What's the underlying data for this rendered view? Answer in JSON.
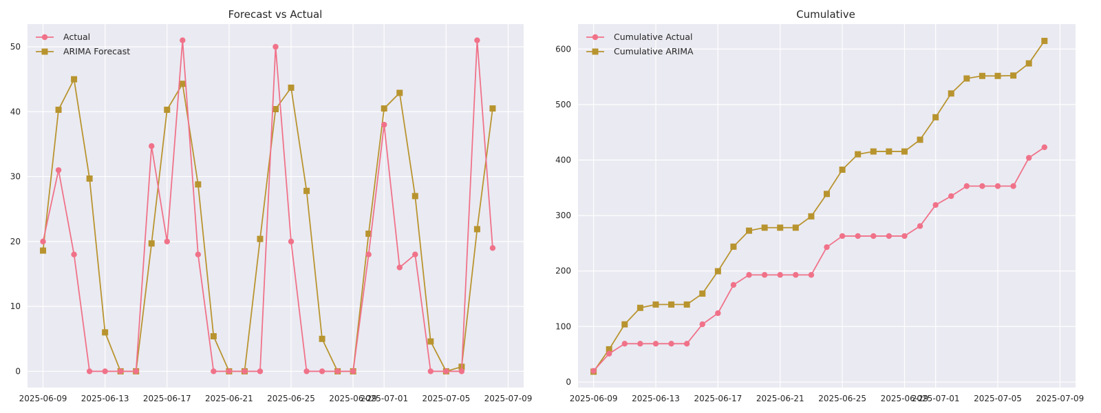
{
  "colors": {
    "actual": "#f07289",
    "forecast": "#b8942f",
    "background": "#eaeaf2",
    "grid": "#ffffff"
  },
  "chart_data": [
    {
      "type": "line",
      "title": "Forecast vs Actual",
      "xlabel": "",
      "ylabel": "",
      "x": [
        "2025-06-09",
        "2025-06-10",
        "2025-06-11",
        "2025-06-12",
        "2025-06-13",
        "2025-06-14",
        "2025-06-15",
        "2025-06-16",
        "2025-06-17",
        "2025-06-18",
        "2025-06-19",
        "2025-06-20",
        "2025-06-21",
        "2025-06-22",
        "2025-06-23",
        "2025-06-24",
        "2025-06-25",
        "2025-06-26",
        "2025-06-27",
        "2025-06-28",
        "2025-06-29",
        "2025-06-30",
        "2025-07-01",
        "2025-07-02",
        "2025-07-03",
        "2025-07-04",
        "2025-07-05",
        "2025-07-06",
        "2025-07-07",
        "2025-07-08"
      ],
      "xlim": [
        "2025-06-08",
        "2025-07-10"
      ],
      "x_ticks": [
        "2025-06-09",
        "2025-06-13",
        "2025-06-17",
        "2025-06-21",
        "2025-06-25",
        "2025-06-29",
        "2025-07-01",
        "2025-07-05",
        "2025-07-09"
      ],
      "ylim": [
        -2.5,
        53.5
      ],
      "y_ticks": [
        0,
        10,
        20,
        30,
        40,
        50
      ],
      "grid": true,
      "legend": "top-left",
      "series": [
        {
          "name": "Actual",
          "marker": "circle",
          "color": "#f07289",
          "values": [
            20,
            31,
            18,
            0,
            0,
            0,
            0,
            34.7,
            20,
            51,
            18,
            0,
            0,
            0,
            0,
            50,
            20,
            0,
            0,
            0,
            0,
            18,
            38,
            16,
            18,
            0,
            0,
            0,
            51,
            19
          ]
        },
        {
          "name": "ARIMA Forecast",
          "marker": "square",
          "color": "#b8942f",
          "values": [
            18.6,
            40.3,
            45,
            29.7,
            6,
            0,
            0,
            19.7,
            40.3,
            44.3,
            28.8,
            5.4,
            0,
            0,
            20.4,
            40.4,
            43.7,
            27.8,
            5,
            0,
            0,
            21.2,
            40.5,
            42.9,
            27,
            4.6,
            0,
            0.7,
            21.9,
            40.5
          ]
        }
      ]
    },
    {
      "type": "line",
      "title": "Cumulative",
      "xlabel": "",
      "ylabel": "",
      "x": [
        "2025-06-09",
        "2025-06-10",
        "2025-06-11",
        "2025-06-12",
        "2025-06-13",
        "2025-06-14",
        "2025-06-15",
        "2025-06-16",
        "2025-06-17",
        "2025-06-18",
        "2025-06-19",
        "2025-06-20",
        "2025-06-21",
        "2025-06-22",
        "2025-06-23",
        "2025-06-24",
        "2025-06-25",
        "2025-06-26",
        "2025-06-27",
        "2025-06-28",
        "2025-06-29",
        "2025-06-30",
        "2025-07-01",
        "2025-07-02",
        "2025-07-03",
        "2025-07-04",
        "2025-07-05",
        "2025-07-06",
        "2025-07-07",
        "2025-07-08"
      ],
      "xlim": [
        "2025-06-08",
        "2025-07-10"
      ],
      "x_ticks": [
        "2025-06-09",
        "2025-06-13",
        "2025-06-17",
        "2025-06-21",
        "2025-06-25",
        "2025-06-29",
        "2025-07-01",
        "2025-07-05",
        "2025-07-09"
      ],
      "ylim": [
        -10,
        645
      ],
      "y_ticks": [
        0,
        100,
        200,
        300,
        400,
        500,
        600
      ],
      "grid": true,
      "legend": "top-left",
      "series": [
        {
          "name": "Cumulative Actual",
          "marker": "circle",
          "color": "#f07289",
          "values": [
            20,
            51,
            69,
            69,
            69,
            69,
            69,
            104,
            124,
            175,
            193,
            193,
            193,
            193,
            193,
            243,
            263,
            263,
            263,
            263,
            263,
            281,
            319,
            335,
            353,
            353,
            353,
            353,
            404,
            423
          ]
        },
        {
          "name": "Cumulative ARIMA",
          "marker": "square",
          "color": "#b8942f",
          "values": [
            18.6,
            58.9,
            103.9,
            133.6,
            139.6,
            139.6,
            139.6,
            159.3,
            199.6,
            243.9,
            272.7,
            278.1,
            278.1,
            278.1,
            298.5,
            338.9,
            382.6,
            410.4,
            415.4,
            415.4,
            415.4,
            436.6,
            477.1,
            520,
            547,
            551.6,
            551.6,
            552.3,
            574.2,
            614.7
          ]
        }
      ]
    }
  ]
}
